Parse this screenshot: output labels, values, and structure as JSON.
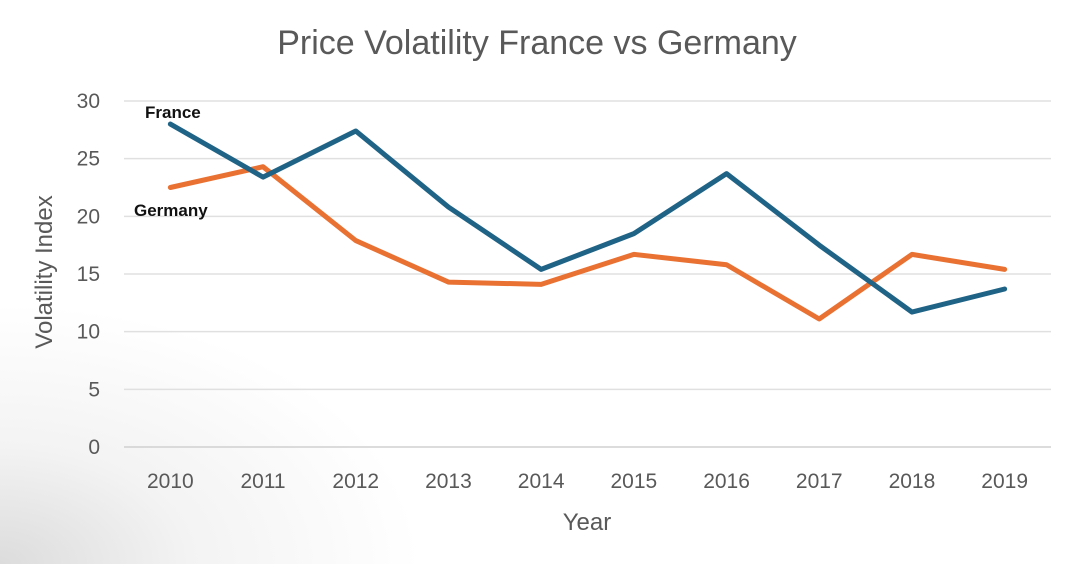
{
  "chart_data": {
    "type": "line",
    "title": "Price Volatility France vs Germany",
    "xlabel": "Year",
    "ylabel": "Volatility Index",
    "categories": [
      "2010",
      "2011",
      "2012",
      "2013",
      "2014",
      "2015",
      "2016",
      "2017",
      "2018",
      "2019"
    ],
    "ylim": [
      0,
      30
    ],
    "yticks": [
      0,
      5,
      10,
      15,
      20,
      25,
      30
    ],
    "grid": true,
    "legend": "none (inline labels)",
    "series": [
      {
        "name": "France",
        "color": "#1f6386",
        "values": [
          28.0,
          23.4,
          27.4,
          20.8,
          15.4,
          18.5,
          23.7,
          17.5,
          11.7,
          13.7
        ]
      },
      {
        "name": "Germany",
        "color": "#e97132",
        "values": [
          22.5,
          24.3,
          17.9,
          14.3,
          14.1,
          16.7,
          15.8,
          11.1,
          16.7,
          15.4
        ]
      }
    ]
  }
}
